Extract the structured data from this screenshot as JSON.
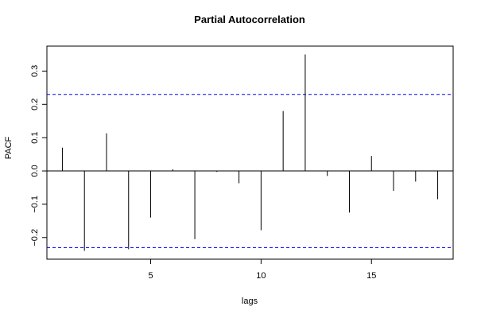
{
  "chart_data": {
    "type": "bar",
    "title": "Partial Autocorrelation",
    "xlabel": "lags",
    "ylabel": "PACF",
    "xlim": [
      0.3,
      18.7
    ],
    "ylim": [
      -0.265,
      0.375
    ],
    "x_ticks": [
      5,
      10,
      15
    ],
    "y_ticks": [
      -0.2,
      -0.1,
      0.0,
      0.1,
      0.2,
      0.3
    ],
    "y_tick_labels": [
      "−0.2",
      "−0.1",
      "0.0",
      "0.1",
      "0.2",
      "0.3"
    ],
    "confidence_band": [
      0.23,
      -0.23
    ],
    "colors": {
      "bars": "#000000",
      "band": "#0000ff",
      "axis": "#000000"
    },
    "grid": false,
    "series": [
      {
        "lags": [
          1,
          2,
          3,
          4,
          5,
          6,
          7,
          8,
          9,
          10,
          11,
          12,
          13,
          14,
          15,
          16,
          17,
          18
        ],
        "values": [
          0.07,
          -0.24,
          0.113,
          -0.235,
          -0.14,
          0.005,
          -0.205,
          -0.003,
          -0.037,
          -0.178,
          0.18,
          0.35,
          -0.015,
          -0.125,
          0.045,
          -0.06,
          -0.032,
          -0.085
        ]
      }
    ]
  }
}
